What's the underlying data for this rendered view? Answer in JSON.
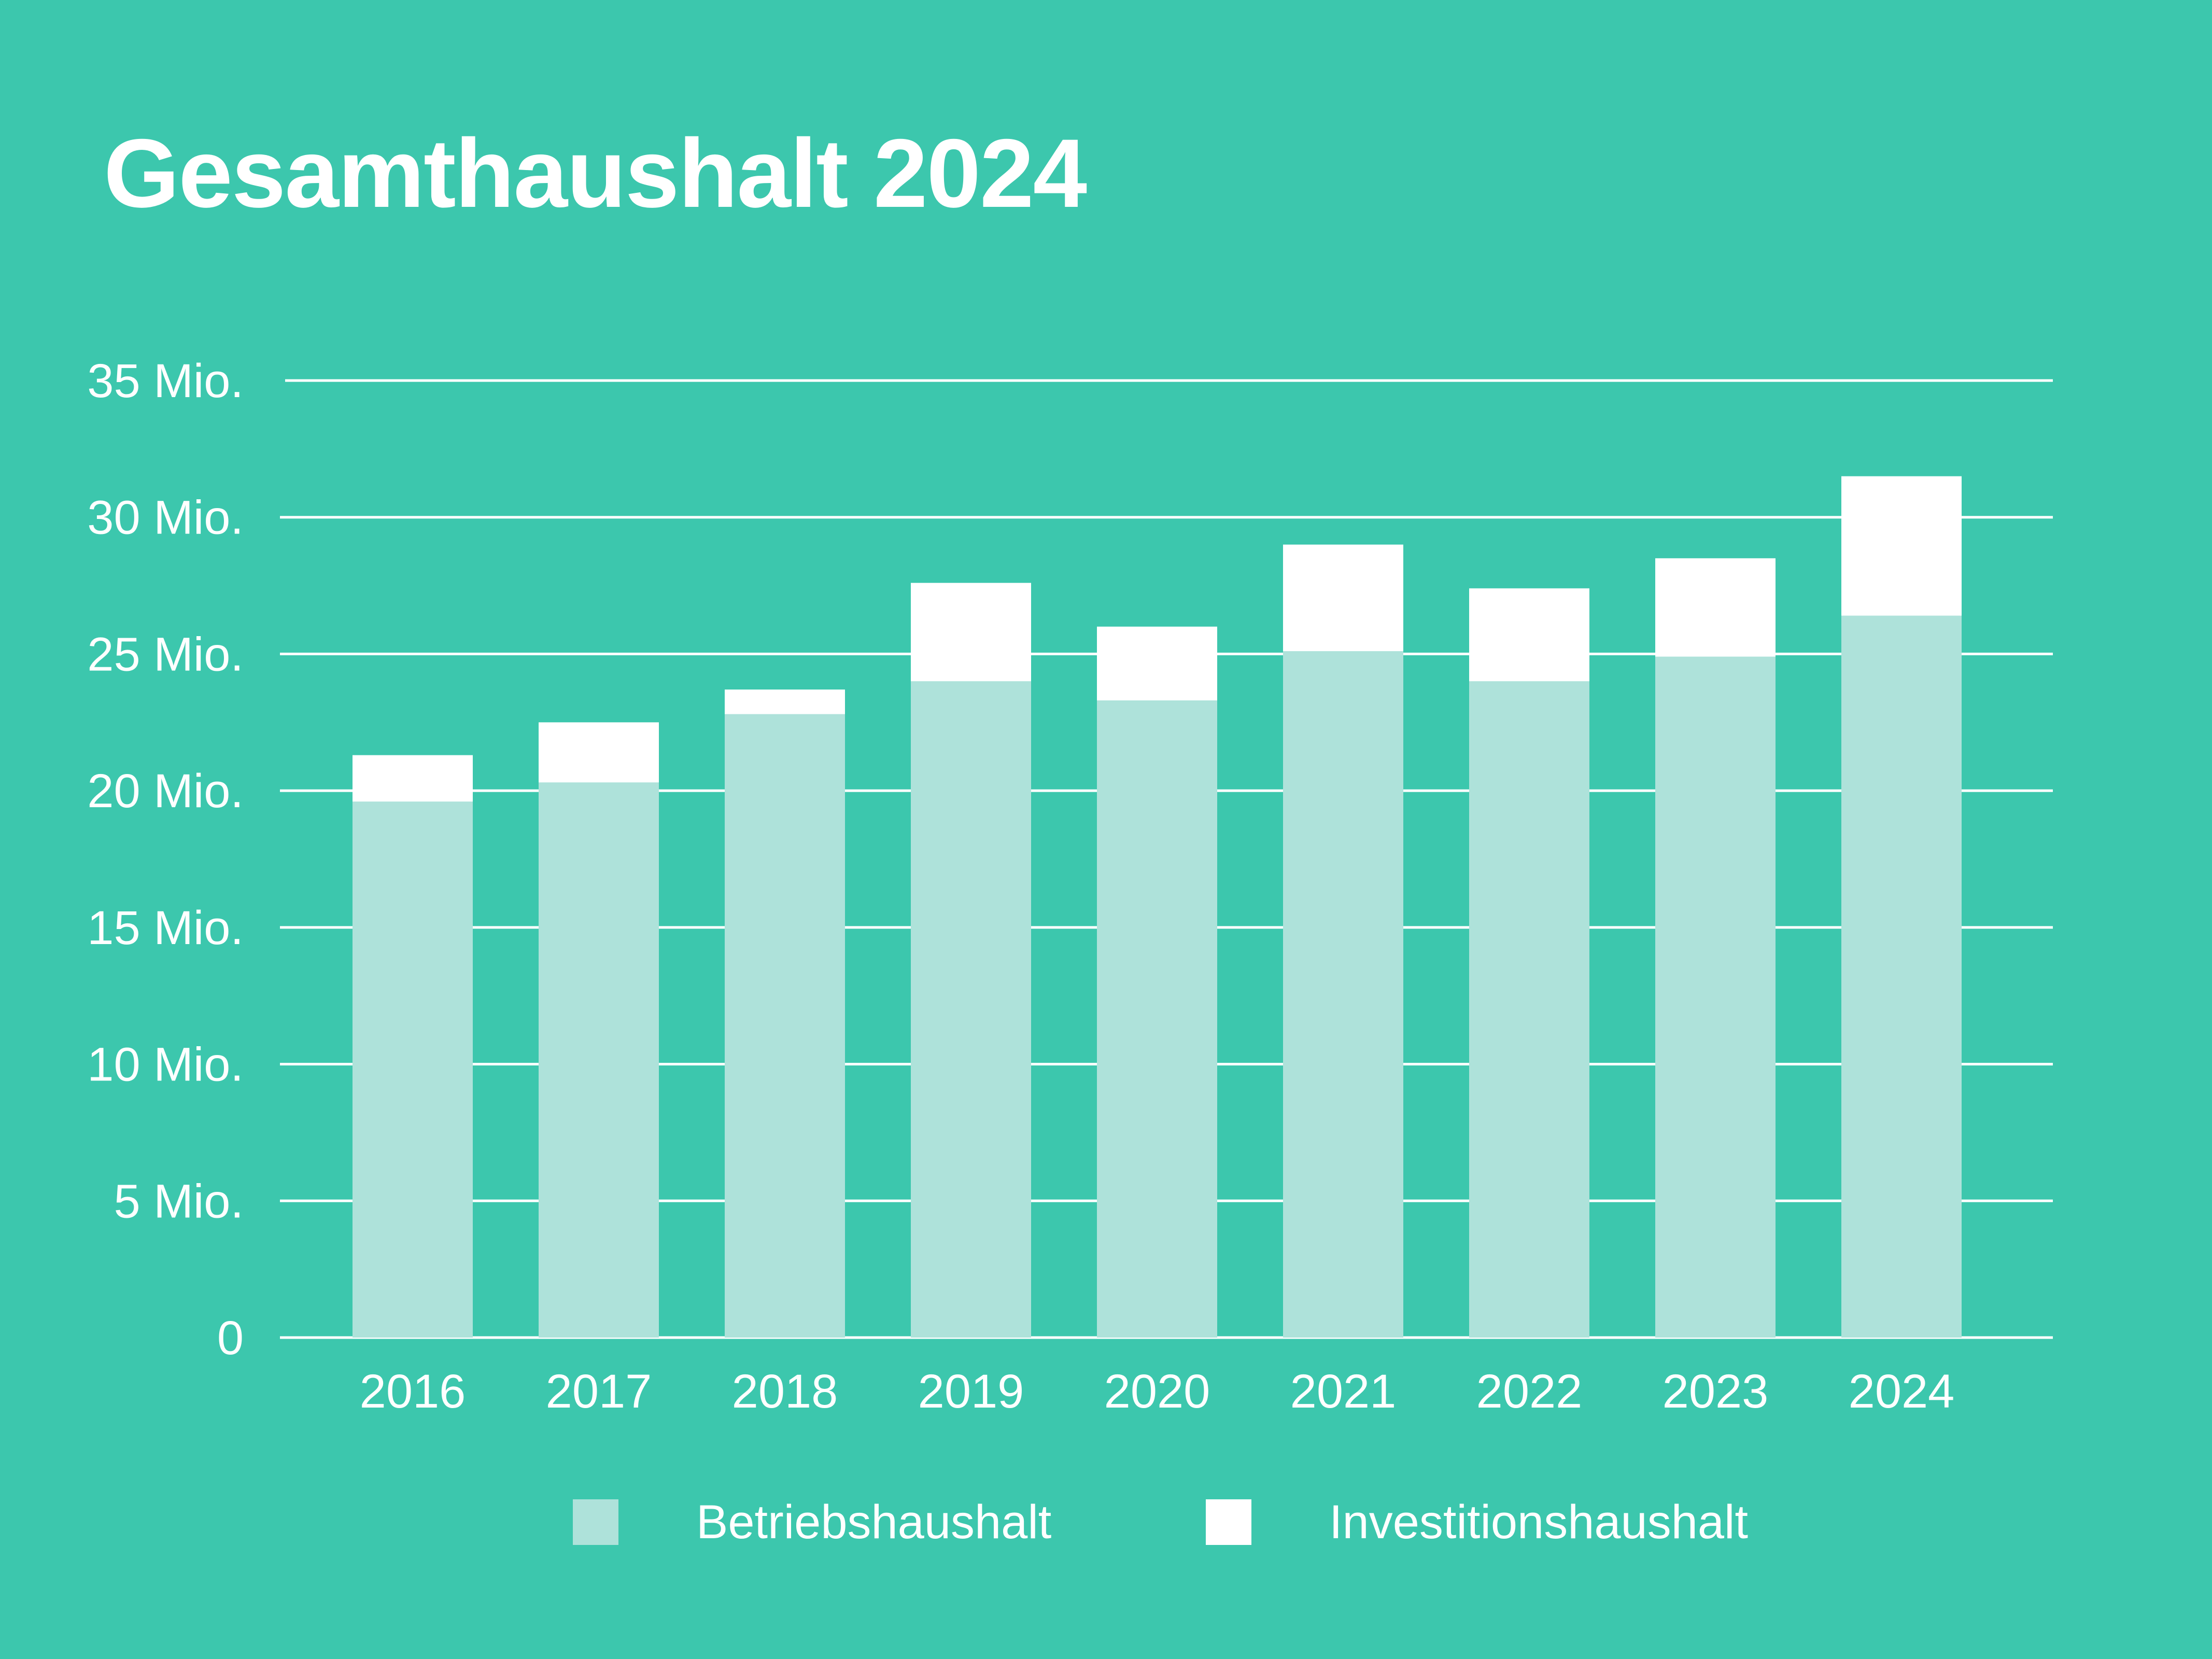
{
  "chart_data": {
    "type": "bar",
    "stacked": true,
    "title": "Gesamthaushalt 2024",
    "categories": [
      "2016",
      "2017",
      "2018",
      "2019",
      "2020",
      "2021",
      "2022",
      "2023",
      "2024"
    ],
    "series": [
      {
        "name": "Betriebshaushalt",
        "color": "#aee2da",
        "values": [
          19.6,
          20.3,
          22.8,
          24.0,
          23.3,
          25.1,
          24.0,
          24.9,
          26.4
        ]
      },
      {
        "name": "Investitionshaushalt",
        "color": "#ffffff",
        "values": [
          1.7,
          2.2,
          0.9,
          3.6,
          2.7,
          3.9,
          3.4,
          3.6,
          5.1
        ]
      }
    ],
    "ylim": [
      0,
      35
    ],
    "yticks": [
      {
        "value": 0,
        "label": "0"
      },
      {
        "value": 5,
        "label": "5 Mio."
      },
      {
        "value": 10,
        "label": "10 Mio."
      },
      {
        "value": 15,
        "label": "15 Mio."
      },
      {
        "value": 20,
        "label": "20 Mio."
      },
      {
        "value": 25,
        "label": "25 Mio."
      },
      {
        "value": 30,
        "label": "30 Mio."
      },
      {
        "value": 35,
        "label": "35 Mio."
      }
    ],
    "grid": true,
    "legend_position": "bottom",
    "background": "#3cc7ad"
  }
}
